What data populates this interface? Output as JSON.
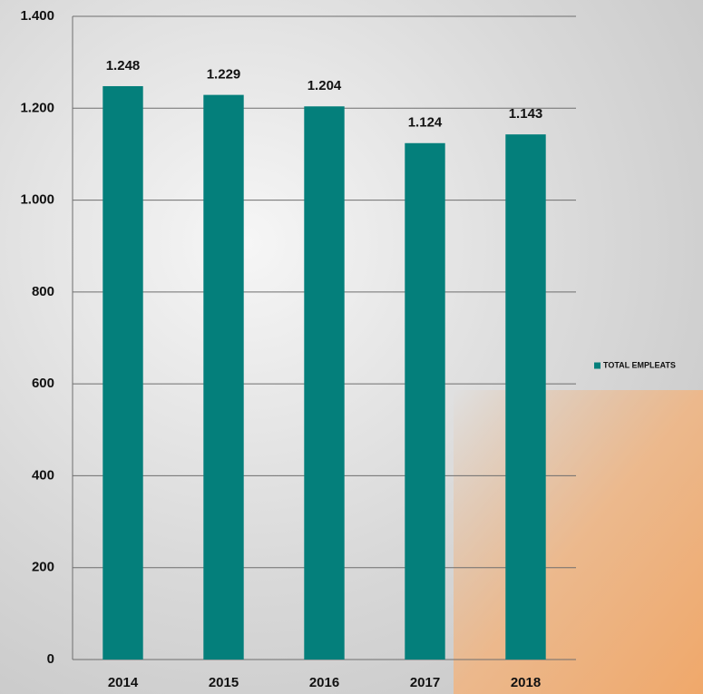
{
  "chart_data": {
    "type": "bar",
    "categories": [
      "2014",
      "2015",
      "2016",
      "2017",
      "2018"
    ],
    "series": [
      {
        "name": "TOTAL EMPLEATS",
        "color": "#047f7b",
        "values": [
          1248,
          1229,
          1204,
          1124,
          1143
        ],
        "value_labels": [
          "1.248",
          "1.229",
          "1.204",
          "1.124",
          "1.143"
        ]
      }
    ],
    "ylim": [
      0,
      1400
    ],
    "yticks": [
      0,
      200,
      400,
      600,
      800,
      {
        "value": 1000,
        "label": "1.000"
      },
      {
        "value": 1200,
        "label": "1.200"
      },
      {
        "value": 1400,
        "label": "1.400"
      }
    ],
    "grid": true,
    "legend": "right"
  }
}
